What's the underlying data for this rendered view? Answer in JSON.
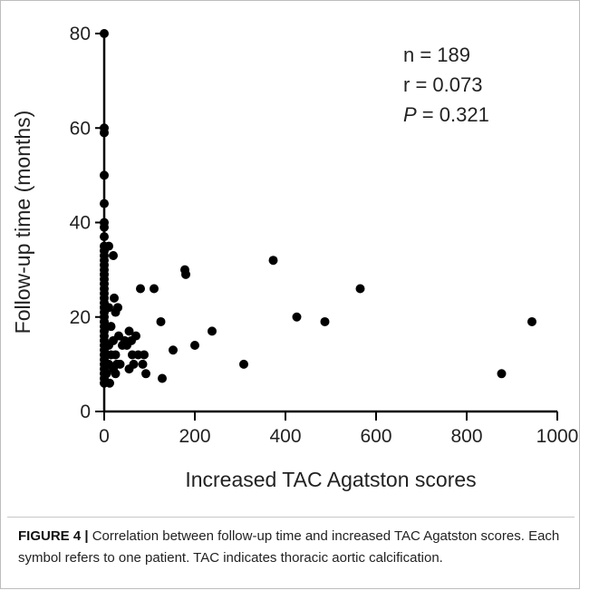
{
  "chart_data": {
    "type": "scatter",
    "xlabel": "Increased TAC Agatston scores",
    "ylabel": "Follow-up time (months)",
    "xlim": [
      0,
      1000
    ],
    "ylim": [
      0,
      80
    ],
    "x_ticks": [
      0,
      200,
      400,
      600,
      800,
      1000
    ],
    "y_ticks": [
      0,
      20,
      40,
      60,
      80
    ],
    "x_tick_labels": [
      "0",
      "200",
      "400",
      "600",
      "800",
      "1000"
    ],
    "y_tick_labels": [
      "0",
      "20",
      "40",
      "60",
      "80"
    ],
    "grid": false,
    "point_color": "#000000",
    "annotations": {
      "n": "n = 189",
      "r": "r = 0.073",
      "p_symbol": "P",
      "p_rest": " = 0.321"
    },
    "points": [
      {
        "x": 0,
        "y": 80
      },
      {
        "x": 0,
        "y": 60
      },
      {
        "x": 0,
        "y": 59
      },
      {
        "x": 0,
        "y": 50
      },
      {
        "x": 0,
        "y": 44
      },
      {
        "x": 0,
        "y": 40
      },
      {
        "x": 0,
        "y": 39
      },
      {
        "x": 0,
        "y": 37
      },
      {
        "x": 0,
        "y": 35
      },
      {
        "x": 0,
        "y": 34
      },
      {
        "x": 0,
        "y": 33
      },
      {
        "x": 0,
        "y": 32
      },
      {
        "x": 0,
        "y": 31
      },
      {
        "x": 0,
        "y": 30
      },
      {
        "x": 0,
        "y": 29
      },
      {
        "x": 0,
        "y": 28
      },
      {
        "x": 0,
        "y": 27
      },
      {
        "x": 0,
        "y": 26
      },
      {
        "x": 0,
        "y": 25
      },
      {
        "x": 0,
        "y": 24
      },
      {
        "x": 0,
        "y": 23
      },
      {
        "x": 0,
        "y": 22
      },
      {
        "x": 0,
        "y": 21
      },
      {
        "x": 0,
        "y": 20
      },
      {
        "x": 0,
        "y": 19
      },
      {
        "x": 0,
        "y": 18
      },
      {
        "x": 0,
        "y": 17
      },
      {
        "x": 0,
        "y": 16
      },
      {
        "x": 0,
        "y": 15
      },
      {
        "x": 0,
        "y": 14
      },
      {
        "x": 0,
        "y": 13
      },
      {
        "x": 0,
        "y": 12
      },
      {
        "x": 0,
        "y": 11
      },
      {
        "x": 0,
        "y": 10
      },
      {
        "x": 0,
        "y": 9
      },
      {
        "x": 0,
        "y": 8
      },
      {
        "x": 0,
        "y": 7
      },
      {
        "x": 0,
        "y": 6
      },
      {
        "x": 5,
        "y": 18
      },
      {
        "x": 5,
        "y": 12
      },
      {
        "x": 5,
        "y": 8
      },
      {
        "x": 10,
        "y": 35
      },
      {
        "x": 10,
        "y": 22
      },
      {
        "x": 10,
        "y": 14
      },
      {
        "x": 10,
        "y": 10
      },
      {
        "x": 12,
        "y": 6
      },
      {
        "x": 15,
        "y": 18
      },
      {
        "x": 15,
        "y": 12
      },
      {
        "x": 20,
        "y": 33
      },
      {
        "x": 20,
        "y": 15
      },
      {
        "x": 20,
        "y": 9
      },
      {
        "x": 22,
        "y": 24
      },
      {
        "x": 25,
        "y": 21
      },
      {
        "x": 25,
        "y": 12
      },
      {
        "x": 25,
        "y": 8
      },
      {
        "x": 28,
        "y": 10
      },
      {
        "x": 30,
        "y": 22
      },
      {
        "x": 32,
        "y": 16
      },
      {
        "x": 35,
        "y": 10
      },
      {
        "x": 40,
        "y": 14
      },
      {
        "x": 45,
        "y": 15
      },
      {
        "x": 50,
        "y": 14
      },
      {
        "x": 55,
        "y": 17
      },
      {
        "x": 55,
        "y": 9
      },
      {
        "x": 60,
        "y": 15
      },
      {
        "x": 62,
        "y": 12
      },
      {
        "x": 65,
        "y": 10
      },
      {
        "x": 70,
        "y": 16
      },
      {
        "x": 75,
        "y": 12
      },
      {
        "x": 80,
        "y": 26
      },
      {
        "x": 85,
        "y": 10
      },
      {
        "x": 88,
        "y": 12
      },
      {
        "x": 92,
        "y": 8
      },
      {
        "x": 110,
        "y": 26
      },
      {
        "x": 125,
        "y": 19
      },
      {
        "x": 128,
        "y": 7
      },
      {
        "x": 152,
        "y": 13
      },
      {
        "x": 178,
        "y": 30
      },
      {
        "x": 180,
        "y": 29
      },
      {
        "x": 200,
        "y": 14
      },
      {
        "x": 238,
        "y": 17
      },
      {
        "x": 308,
        "y": 10
      },
      {
        "x": 373,
        "y": 32
      },
      {
        "x": 425,
        "y": 20
      },
      {
        "x": 487,
        "y": 19
      },
      {
        "x": 565,
        "y": 26
      },
      {
        "x": 877,
        "y": 8
      },
      {
        "x": 944,
        "y": 19
      }
    ]
  },
  "caption": {
    "label": "FIGURE 4 |",
    "text": " Correlation between follow-up time and increased TAC Agatston scores. Each symbol refers to one patient. TAC indicates thoracic aortic calcification."
  }
}
